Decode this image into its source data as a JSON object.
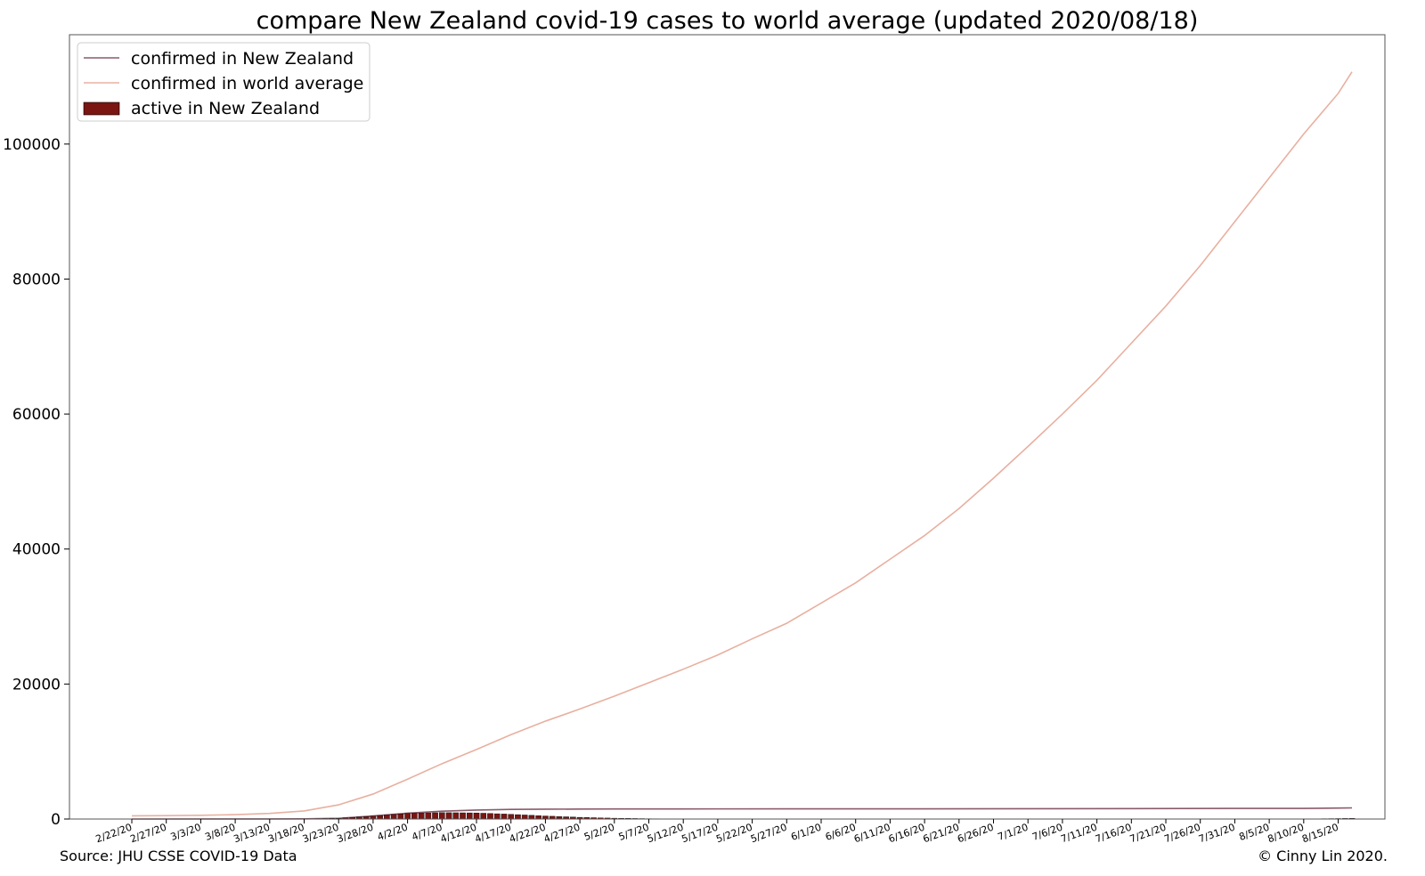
{
  "chart_data": {
    "type": "line",
    "title": "compare New Zealand covid-19 cases to world average (updated 2020/08/18)",
    "xlabel": "",
    "ylabel": "",
    "ylim": [
      0,
      116200
    ],
    "yticks": [
      0,
      20000,
      40000,
      60000,
      80000,
      100000
    ],
    "grid": false,
    "legend_position": "top-left",
    "x_tick_labels": [
      "2/22/20",
      "2/27/20",
      "3/3/20",
      "3/8/20",
      "3/13/20",
      "3/18/20",
      "3/23/20",
      "3/28/20",
      "4/2/20",
      "4/7/20",
      "4/12/20",
      "4/17/20",
      "4/22/20",
      "4/27/20",
      "5/2/20",
      "5/7/20",
      "5/12/20",
      "5/17/20",
      "5/22/20",
      "5/27/20",
      "6/1/20",
      "6/6/20",
      "6/11/20",
      "6/16/20",
      "6/21/20",
      "6/26/20",
      "7/1/20",
      "7/6/20",
      "7/11/20",
      "7/16/20",
      "7/21/20",
      "7/26/20",
      "7/31/20",
      "8/5/20",
      "8/10/20",
      "8/15/20"
    ],
    "x_range": [
      "2/22/20",
      "8/17/20"
    ],
    "series": [
      {
        "name": "confirmed in New Zealand",
        "style": "line",
        "color": "#8a5a6a",
        "points": [
          [
            "2/22/20",
            0
          ],
          [
            "3/13/20",
            5
          ],
          [
            "3/18/20",
            28
          ],
          [
            "3/23/20",
            102
          ],
          [
            "3/28/20",
            451
          ],
          [
            "4/2/20",
            868
          ],
          [
            "4/7/20",
            1160
          ],
          [
            "4/12/20",
            1330
          ],
          [
            "4/17/20",
            1422
          ],
          [
            "4/22/20",
            1456
          ],
          [
            "4/27/20",
            1472
          ],
          [
            "5/2/20",
            1487
          ],
          [
            "5/17/20",
            1499
          ],
          [
            "6/1/20",
            1504
          ],
          [
            "6/16/20",
            1506
          ],
          [
            "7/1/20",
            1528
          ],
          [
            "7/16/20",
            1547
          ],
          [
            "7/31/20",
            1569
          ],
          [
            "8/10/20",
            1572
          ],
          [
            "8/12/20",
            1589
          ],
          [
            "8/15/20",
            1622
          ],
          [
            "8/17/20",
            1649
          ]
        ]
      },
      {
        "name": "confirmed in world average",
        "style": "line",
        "color": "#e8b0a0",
        "points": [
          [
            "2/22/20",
            470
          ],
          [
            "2/27/20",
            500
          ],
          [
            "3/3/20",
            550
          ],
          [
            "3/8/20",
            650
          ],
          [
            "3/13/20",
            830
          ],
          [
            "3/18/20",
            1200
          ],
          [
            "3/23/20",
            2100
          ],
          [
            "3/28/20",
            3700
          ],
          [
            "4/2/20",
            5900
          ],
          [
            "4/7/20",
            8200
          ],
          [
            "4/12/20",
            10300
          ],
          [
            "4/17/20",
            12500
          ],
          [
            "4/22/20",
            14500
          ],
          [
            "4/27/20",
            16300
          ],
          [
            "5/2/20",
            18200
          ],
          [
            "5/7/20",
            20200
          ],
          [
            "5/12/20",
            22200
          ],
          [
            "5/17/20",
            24300
          ],
          [
            "5/22/20",
            26700
          ],
          [
            "5/27/20",
            29000
          ],
          [
            "6/1/20",
            32000
          ],
          [
            "6/6/20",
            35000
          ],
          [
            "6/11/20",
            38500
          ],
          [
            "6/16/20",
            42000
          ],
          [
            "6/21/20",
            46000
          ],
          [
            "6/26/20",
            50500
          ],
          [
            "7/1/20",
            55200
          ],
          [
            "7/6/20",
            60000
          ],
          [
            "7/11/20",
            65000
          ],
          [
            "7/16/20",
            70500
          ],
          [
            "7/21/20",
            76000
          ],
          [
            "7/26/20",
            82000
          ],
          [
            "7/31/20",
            88500
          ],
          [
            "8/5/20",
            95000
          ],
          [
            "8/10/20",
            101500
          ],
          [
            "8/15/20",
            107500
          ],
          [
            "8/17/20",
            110700
          ]
        ]
      },
      {
        "name": "active in New Zealand",
        "style": "bar",
        "color": "#7b1512",
        "points": [
          [
            "3/18/20",
            28
          ],
          [
            "3/23/20",
            100
          ],
          [
            "3/28/20",
            440
          ],
          [
            "4/2/20",
            840
          ],
          [
            "4/7/20",
            950
          ],
          [
            "4/12/20",
            900
          ],
          [
            "4/17/20",
            700
          ],
          [
            "4/22/20",
            450
          ],
          [
            "4/27/20",
            250
          ],
          [
            "5/2/20",
            120
          ],
          [
            "5/7/20",
            50
          ],
          [
            "5/12/20",
            20
          ],
          [
            "5/17/20",
            5
          ],
          [
            "5/22/20",
            2
          ],
          [
            "6/8/20",
            0
          ],
          [
            "6/16/20",
            2
          ],
          [
            "7/1/20",
            22
          ],
          [
            "7/16/20",
            25
          ],
          [
            "7/31/20",
            22
          ],
          [
            "8/10/20",
            20
          ],
          [
            "8/12/20",
            40
          ],
          [
            "8/15/20",
            70
          ],
          [
            "8/17/20",
            100
          ]
        ]
      }
    ]
  },
  "footer": {
    "source": "Source: JHU CSSE COVID-19 Data",
    "copyright": "© Cinny Lin 2020."
  }
}
